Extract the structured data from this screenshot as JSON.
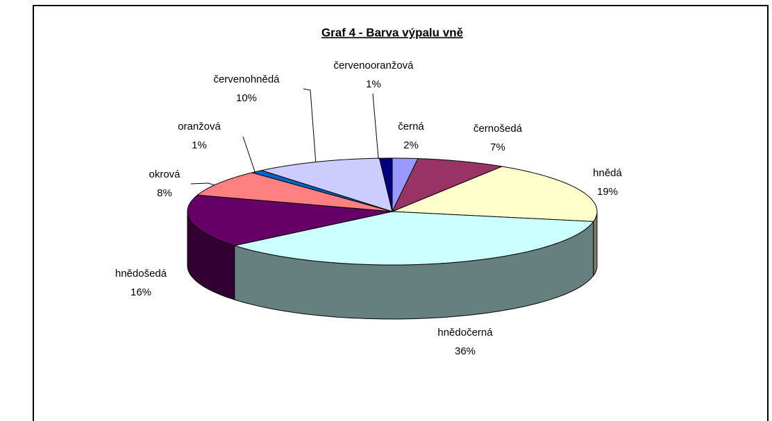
{
  "chart_data": {
    "type": "pie3d",
    "title": "Graf 4 - Barva výpalu vně",
    "categories": [
      "černá",
      "černošedá",
      "hnědá",
      "hnědočerná",
      "hnědošedá",
      "okrová",
      "oranžová",
      "červenohnědá",
      "červenooranžová"
    ],
    "values": [
      2,
      7,
      19,
      36,
      16,
      8,
      1,
      10,
      1
    ],
    "value_labels": [
      "2%",
      "7%",
      "19%",
      "36%",
      "16%",
      "8%",
      "1%",
      "10%",
      "1%"
    ],
    "colors": [
      "#9999ff",
      "#993366",
      "#ffffcc",
      "#ccffff",
      "#660066",
      "#ff8080",
      "#0066cc",
      "#ccccff",
      "#000080"
    ]
  }
}
